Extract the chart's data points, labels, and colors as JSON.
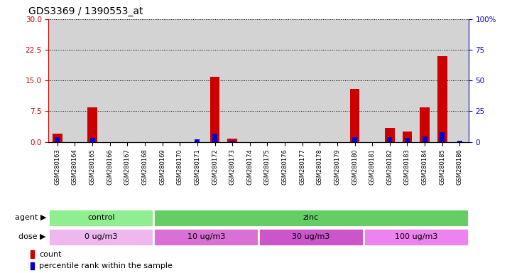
{
  "title": "GDS3369 / 1390553_at",
  "samples": [
    "GSM280163",
    "GSM280164",
    "GSM280165",
    "GSM280166",
    "GSM280167",
    "GSM280168",
    "GSM280169",
    "GSM280170",
    "GSM280171",
    "GSM280172",
    "GSM280173",
    "GSM280174",
    "GSM280175",
    "GSM280176",
    "GSM280177",
    "GSM280178",
    "GSM280179",
    "GSM280180",
    "GSM280181",
    "GSM280182",
    "GSM280183",
    "GSM280184",
    "GSM280185",
    "GSM280186"
  ],
  "count": [
    2.0,
    0.0,
    8.5,
    0.0,
    0.0,
    0.0,
    0.0,
    0.0,
    0.0,
    16.0,
    0.8,
    0.0,
    0.0,
    0.0,
    0.0,
    0.0,
    0.0,
    13.0,
    0.0,
    3.5,
    2.5,
    8.5,
    21.0,
    0.0
  ],
  "percentile": [
    4.0,
    0.0,
    3.0,
    0.0,
    0.0,
    0.0,
    0.0,
    0.0,
    2.0,
    7.0,
    1.0,
    0.0,
    0.0,
    0.0,
    0.0,
    0.0,
    0.0,
    4.0,
    0.0,
    4.0,
    3.5,
    4.5,
    8.0,
    0.7
  ],
  "ylim_left": [
    0,
    30
  ],
  "ylim_right": [
    0,
    100
  ],
  "yticks_left": [
    0,
    7.5,
    15,
    22.5,
    30
  ],
  "yticks_right": [
    0,
    25,
    50,
    75,
    100
  ],
  "agent_groups": [
    {
      "label": "control",
      "start": 0,
      "end": 6,
      "color": "#90EE90"
    },
    {
      "label": "zinc",
      "start": 6,
      "end": 24,
      "color": "#66CC66"
    }
  ],
  "dose_groups": [
    {
      "label": "0 ug/m3",
      "start": 0,
      "end": 6,
      "color": "#EEB8EE"
    },
    {
      "label": "10 ug/m3",
      "start": 6,
      "end": 12,
      "color": "#DA70D6"
    },
    {
      "label": "30 ug/m3",
      "start": 12,
      "end": 18,
      "color": "#CC55CC"
    },
    {
      "label": "100 ug/m3",
      "start": 18,
      "end": 24,
      "color": "#EE82EE"
    }
  ],
  "count_color": "#CC0000",
  "percentile_color": "#0000CC",
  "bg_color": "#D3D3D3",
  "left_axis_color": "#CC0000",
  "right_axis_color": "#0000CC",
  "label_agent": "agent",
  "label_dose": "dose",
  "legend_count": "count",
  "legend_percentile": "percentile rank within the sample"
}
